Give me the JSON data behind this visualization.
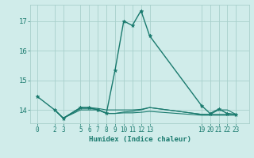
{
  "xlabel": "Humidex (Indice chaleur)",
  "background_color": "#d0ecea",
  "grid_color": "#a8d0cc",
  "line_color": "#1a7a6e",
  "xticks": [
    0,
    2,
    3,
    5,
    6,
    7,
    8,
    9,
    10,
    11,
    12,
    13,
    19,
    20,
    21,
    22,
    23
  ],
  "yticks": [
    14,
    15,
    16,
    17
  ],
  "ylim": [
    13.55,
    17.55
  ],
  "xlim": [
    -0.8,
    24.5
  ],
  "series1": [
    [
      0,
      14.45
    ],
    [
      2,
      14.0
    ],
    [
      3,
      13.72
    ],
    [
      5,
      14.08
    ],
    [
      6,
      14.08
    ],
    [
      7,
      14.0
    ],
    [
      8,
      13.9
    ],
    [
      9,
      15.35
    ],
    [
      10,
      17.0
    ],
    [
      11,
      16.85
    ],
    [
      12,
      17.35
    ],
    [
      13,
      16.5
    ],
    [
      19,
      14.15
    ],
    [
      20,
      13.88
    ],
    [
      21,
      14.03
    ],
    [
      22,
      13.88
    ],
    [
      23,
      13.85
    ]
  ],
  "series2": [
    [
      2,
      14.0
    ],
    [
      3,
      13.72
    ],
    [
      5,
      14.0
    ],
    [
      6,
      14.0
    ],
    [
      7,
      14.0
    ],
    [
      8,
      13.88
    ],
    [
      9,
      13.88
    ],
    [
      10,
      13.9
    ],
    [
      11,
      13.9
    ],
    [
      12,
      13.92
    ],
    [
      13,
      13.95
    ],
    [
      19,
      13.82
    ],
    [
      20,
      13.82
    ],
    [
      21,
      13.82
    ],
    [
      22,
      13.82
    ],
    [
      23,
      13.82
    ]
  ],
  "series3": [
    [
      2,
      14.0
    ],
    [
      3,
      13.72
    ],
    [
      5,
      14.08
    ],
    [
      6,
      14.08
    ],
    [
      7,
      14.05
    ],
    [
      8,
      14.0
    ],
    [
      9,
      14.0
    ],
    [
      10,
      14.0
    ],
    [
      11,
      14.0
    ],
    [
      12,
      14.02
    ],
    [
      13,
      14.08
    ],
    [
      19,
      13.85
    ],
    [
      20,
      13.85
    ],
    [
      21,
      14.0
    ],
    [
      22,
      14.0
    ],
    [
      23,
      13.85
    ]
  ],
  "series4": [
    [
      2,
      14.0
    ],
    [
      3,
      13.72
    ],
    [
      5,
      14.05
    ],
    [
      6,
      14.05
    ],
    [
      7,
      14.02
    ],
    [
      8,
      13.88
    ],
    [
      9,
      13.88
    ],
    [
      10,
      13.93
    ],
    [
      11,
      13.95
    ],
    [
      12,
      14.0
    ],
    [
      13,
      14.08
    ],
    [
      19,
      13.85
    ],
    [
      20,
      13.85
    ],
    [
      21,
      13.85
    ],
    [
      22,
      13.85
    ],
    [
      23,
      13.85
    ]
  ]
}
